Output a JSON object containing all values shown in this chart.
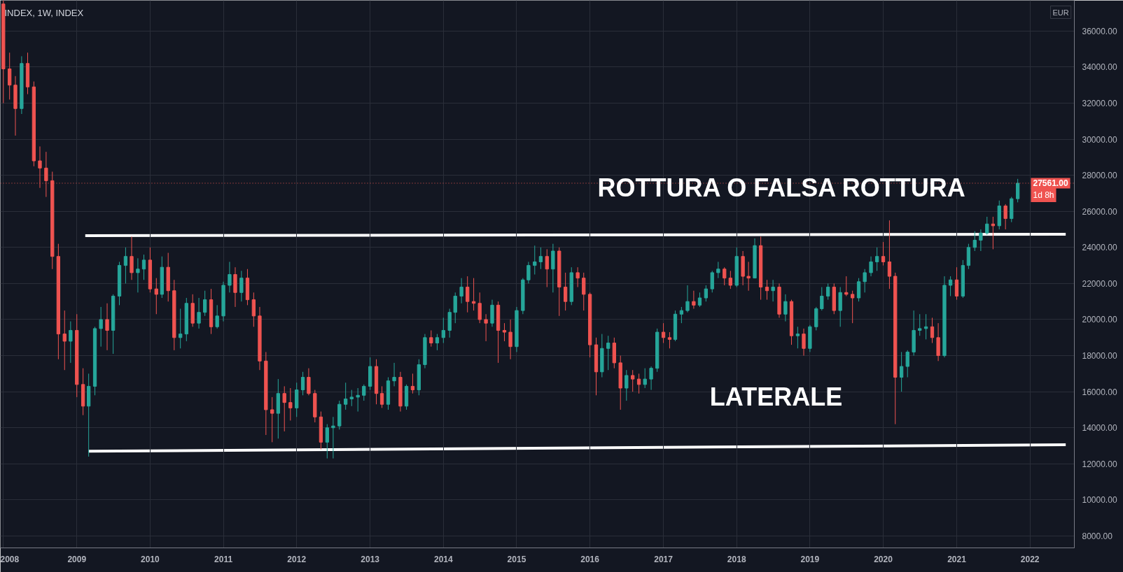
{
  "chart_data": {
    "type": "candlestick",
    "title": "INDEX, 1W, INDEX",
    "x": [
      "2008-01",
      "2008-02",
      "2008-03",
      "2008-04",
      "2008-05",
      "2008-06",
      "2008-07",
      "2008-08",
      "2008-09",
      "2008-10",
      "2008-11",
      "2008-12",
      "2009-01",
      "2009-02",
      "2009-03",
      "2009-04",
      "2009-05",
      "2009-06",
      "2009-07",
      "2009-08",
      "2009-09",
      "2009-10",
      "2009-11",
      "2009-12",
      "2010-01",
      "2010-02",
      "2010-03",
      "2010-04",
      "2010-05",
      "2010-06",
      "2010-07",
      "2010-08",
      "2010-09",
      "2010-10",
      "2010-11",
      "2010-12",
      "2011-01",
      "2011-02",
      "2011-03",
      "2011-04",
      "2011-05",
      "2011-06",
      "2011-07",
      "2011-08",
      "2011-09",
      "2011-10",
      "2011-11",
      "2011-12",
      "2012-01",
      "2012-02",
      "2012-03",
      "2012-04",
      "2012-05",
      "2012-06",
      "2012-07",
      "2012-08",
      "2012-09",
      "2012-10",
      "2012-11",
      "2012-12",
      "2013-01",
      "2013-02",
      "2013-03",
      "2013-04",
      "2013-05",
      "2013-06",
      "2013-07",
      "2013-08",
      "2013-09",
      "2013-10",
      "2013-11",
      "2013-12",
      "2014-01",
      "2014-02",
      "2014-03",
      "2014-04",
      "2014-05",
      "2014-06",
      "2014-07",
      "2014-08",
      "2014-09",
      "2014-10",
      "2014-11",
      "2014-12",
      "2015-01",
      "2015-02",
      "2015-03",
      "2015-04",
      "2015-05",
      "2015-06",
      "2015-07",
      "2015-08",
      "2015-09",
      "2015-10",
      "2015-11",
      "2015-12",
      "2016-01",
      "2016-02",
      "2016-03",
      "2016-04",
      "2016-05",
      "2016-06",
      "2016-07",
      "2016-08",
      "2016-09",
      "2016-10",
      "2016-11",
      "2016-12",
      "2017-01",
      "2017-02",
      "2017-03",
      "2017-04",
      "2017-05",
      "2017-06",
      "2017-07",
      "2017-08",
      "2017-09",
      "2017-10",
      "2017-11",
      "2017-12",
      "2018-01",
      "2018-02",
      "2018-03",
      "2018-04",
      "2018-05",
      "2018-06",
      "2018-07",
      "2018-08",
      "2018-09",
      "2018-10",
      "2018-11",
      "2018-12",
      "2019-01",
      "2019-02",
      "2019-03",
      "2019-04",
      "2019-05",
      "2019-06",
      "2019-07",
      "2019-08",
      "2019-09",
      "2019-10",
      "2019-11",
      "2019-12",
      "2020-01",
      "2020-02",
      "2020-03",
      "2020-04",
      "2020-05",
      "2020-06",
      "2020-07",
      "2020-08",
      "2020-09",
      "2020-10",
      "2020-11",
      "2020-12",
      "2021-01",
      "2021-02",
      "2021-03",
      "2021-04",
      "2021-05",
      "2021-06",
      "2021-07",
      "2021-08",
      "2021-09",
      "2021-10",
      "2021-11"
    ],
    "ohlc": [
      [
        37500,
        37700,
        32000,
        33900
      ],
      [
        33900,
        34800,
        32200,
        33000
      ],
      [
        33000,
        33500,
        30200,
        31700
      ],
      [
        31700,
        34600,
        31400,
        34200
      ],
      [
        34200,
        34800,
        32500,
        32900
      ],
      [
        32900,
        33200,
        28500,
        28800
      ],
      [
        28800,
        29600,
        27300,
        28400
      ],
      [
        28400,
        29300,
        26800,
        27700
      ],
      [
        27700,
        28200,
        22800,
        23500
      ],
      [
        23500,
        24200,
        17800,
        19200
      ],
      [
        19200,
        20500,
        17200,
        18800
      ],
      [
        18800,
        19900,
        17600,
        19400
      ],
      [
        19400,
        20300,
        15700,
        16400
      ],
      [
        16400,
        17300,
        14700,
        15200
      ],
      [
        15200,
        17000,
        12400,
        16300
      ],
      [
        16300,
        19600,
        15800,
        19500
      ],
      [
        19500,
        20700,
        18500,
        20000
      ],
      [
        20000,
        20900,
        18300,
        19400
      ],
      [
        19400,
        21400,
        18100,
        21300
      ],
      [
        21300,
        23200,
        20800,
        23000
      ],
      [
        23000,
        24000,
        22000,
        23500
      ],
      [
        23500,
        24600,
        22200,
        22600
      ],
      [
        22600,
        23400,
        21500,
        22800
      ],
      [
        22800,
        23600,
        22200,
        23300
      ],
      [
        23300,
        24000,
        21500,
        21700
      ],
      [
        21700,
        22300,
        20300,
        21400
      ],
      [
        21400,
        23500,
        21200,
        22900
      ],
      [
        22900,
        23700,
        21000,
        21600
      ],
      [
        21600,
        22200,
        18300,
        19000
      ],
      [
        19000,
        20600,
        18400,
        19200
      ],
      [
        19200,
        21200,
        18800,
        20900
      ],
      [
        20900,
        21400,
        19600,
        19800
      ],
      [
        19800,
        21200,
        19500,
        20400
      ],
      [
        20400,
        21600,
        20200,
        21100
      ],
      [
        21100,
        21700,
        19200,
        19600
      ],
      [
        19600,
        20800,
        19500,
        20200
      ],
      [
        20200,
        22100,
        19900,
        21900
      ],
      [
        21900,
        23200,
        21500,
        22500
      ],
      [
        22500,
        22900,
        20700,
        21500
      ],
      [
        21500,
        22700,
        21000,
        22300
      ],
      [
        22300,
        22800,
        20800,
        21100
      ],
      [
        21100,
        21500,
        19600,
        20200
      ],
      [
        20200,
        20700,
        17200,
        17700
      ],
      [
        17700,
        18200,
        13600,
        15000
      ],
      [
        15000,
        15700,
        13200,
        14800
      ],
      [
        14800,
        16700,
        13400,
        15900
      ],
      [
        15900,
        16300,
        13800,
        15400
      ],
      [
        15400,
        16200,
        14400,
        15100
      ],
      [
        15100,
        16500,
        14600,
        16100
      ],
      [
        16100,
        17100,
        15800,
        16800
      ],
      [
        16800,
        17300,
        15800,
        15900
      ],
      [
        15900,
        16100,
        14300,
        14600
      ],
      [
        14600,
        14900,
        12800,
        13200
      ],
      [
        13200,
        14200,
        12300,
        14000
      ],
      [
        14000,
        14600,
        12300,
        14100
      ],
      [
        14100,
        15500,
        13900,
        15300
      ],
      [
        15300,
        16500,
        15000,
        15600
      ],
      [
        15600,
        16100,
        15200,
        15700
      ],
      [
        15700,
        16200,
        14900,
        15800
      ],
      [
        15800,
        16400,
        15500,
        16300
      ],
      [
        16300,
        17900,
        16100,
        17400
      ],
      [
        17400,
        17800,
        15300,
        15900
      ],
      [
        15900,
        16300,
        15100,
        15300
      ],
      [
        15300,
        16800,
        15000,
        16600
      ],
      [
        16600,
        17600,
        16300,
        16800
      ],
      [
        16800,
        17100,
        14900,
        15200
      ],
      [
        15200,
        16400,
        15000,
        16300
      ],
      [
        16300,
        17000,
        15900,
        16100
      ],
      [
        16100,
        17800,
        15800,
        17500
      ],
      [
        17500,
        19200,
        17300,
        19000
      ],
      [
        19000,
        19400,
        18500,
        18700
      ],
      [
        18700,
        19200,
        18300,
        19000
      ],
      [
        19000,
        20100,
        18700,
        19400
      ],
      [
        19400,
        20600,
        19000,
        20400
      ],
      [
        20400,
        21500,
        19800,
        21300
      ],
      [
        21300,
        22300,
        20900,
        21800
      ],
      [
        21800,
        22400,
        20400,
        21000
      ],
      [
        21000,
        22300,
        20500,
        20900
      ],
      [
        20900,
        21500,
        19800,
        20000
      ],
      [
        20000,
        20300,
        18800,
        19800
      ],
      [
        19800,
        21100,
        19600,
        20800
      ],
      [
        20800,
        21000,
        17600,
        19400
      ],
      [
        19400,
        19800,
        18800,
        19300
      ],
      [
        19300,
        20000,
        17800,
        18500
      ],
      [
        18500,
        20700,
        18200,
        20500
      ],
      [
        20500,
        22300,
        20300,
        22200
      ],
      [
        22200,
        23200,
        22000,
        23000
      ],
      [
        23000,
        24100,
        22500,
        23200
      ],
      [
        23200,
        24000,
        22800,
        23500
      ],
      [
        23500,
        23900,
        21800,
        22800
      ],
      [
        22800,
        24200,
        21500,
        23800
      ],
      [
        23800,
        24000,
        20200,
        21800
      ],
      [
        21800,
        22600,
        20500,
        21000
      ],
      [
        21000,
        22900,
        20800,
        22600
      ],
      [
        22600,
        22900,
        21800,
        22300
      ],
      [
        22300,
        22600,
        20500,
        21400
      ],
      [
        21400,
        21500,
        17900,
        18600
      ],
      [
        18600,
        19000,
        15800,
        17100
      ],
      [
        17100,
        19200,
        16800,
        18400
      ],
      [
        18400,
        19100,
        17200,
        18700
      ],
      [
        18700,
        19000,
        17300,
        17600
      ],
      [
        17600,
        18000,
        15000,
        16200
      ],
      [
        16200,
        17200,
        15500,
        16900
      ],
      [
        16900,
        17200,
        16000,
        16700
      ],
      [
        16700,
        17000,
        15900,
        16400
      ],
      [
        16400,
        17300,
        16200,
        16700
      ],
      [
        16700,
        17400,
        16100,
        17300
      ],
      [
        17300,
        19500,
        17100,
        19300
      ],
      [
        19300,
        19800,
        18700,
        19000
      ],
      [
        19000,
        19300,
        18400,
        18900
      ],
      [
        18900,
        20500,
        18800,
        20300
      ],
      [
        20300,
        20700,
        19800,
        20500
      ],
      [
        20500,
        21900,
        20400,
        21000
      ],
      [
        21000,
        21600,
        20600,
        20800
      ],
      [
        20800,
        21500,
        20700,
        21200
      ],
      [
        21200,
        21900,
        21000,
        21700
      ],
      [
        21700,
        22700,
        21500,
        22600
      ],
      [
        22600,
        23200,
        22300,
        22800
      ],
      [
        22800,
        22900,
        21900,
        22300
      ],
      [
        22300,
        22700,
        21700,
        21900
      ],
      [
        21900,
        24000,
        21800,
        23500
      ],
      [
        23500,
        23800,
        21900,
        22400
      ],
      [
        22400,
        23200,
        21600,
        22300
      ],
      [
        22300,
        24500,
        22300,
        24100
      ],
      [
        24100,
        24600,
        21100,
        21800
      ],
      [
        21800,
        22200,
        21100,
        21600
      ],
      [
        21600,
        22200,
        21000,
        21800
      ],
      [
        21800,
        22000,
        20100,
        20300
      ],
      [
        20300,
        21400,
        19900,
        21000
      ],
      [
        21000,
        21100,
        18600,
        19100
      ],
      [
        19100,
        19600,
        18400,
        19200
      ],
      [
        19200,
        19500,
        18000,
        18400
      ],
      [
        18400,
        19700,
        18200,
        19600
      ],
      [
        19600,
        20700,
        19400,
        20600
      ],
      [
        20600,
        21800,
        20500,
        21300
      ],
      [
        21300,
        22000,
        21100,
        21800
      ],
      [
        21800,
        22000,
        20300,
        20500
      ],
      [
        20500,
        21800,
        19600,
        21500
      ],
      [
        21500,
        22400,
        21300,
        21400
      ],
      [
        21400,
        21600,
        19800,
        21200
      ],
      [
        21200,
        22300,
        21000,
        22100
      ],
      [
        22100,
        22800,
        21500,
        22600
      ],
      [
        22600,
        23500,
        22400,
        23200
      ],
      [
        23200,
        24000,
        22700,
        23500
      ],
      [
        23500,
        24300,
        23000,
        23200
      ],
      [
        23200,
        25500,
        21700,
        22400
      ],
      [
        22400,
        22600,
        14200,
        16800
      ],
      [
        16800,
        18200,
        16000,
        17400
      ],
      [
        17400,
        18300,
        16800,
        18200
      ],
      [
        18200,
        20500,
        18000,
        19400
      ],
      [
        19400,
        20300,
        19100,
        19500
      ],
      [
        19500,
        20300,
        18900,
        19600
      ],
      [
        19600,
        20100,
        18700,
        19000
      ],
      [
        19000,
        19800,
        17700,
        18000
      ],
      [
        18000,
        22400,
        17900,
        21900
      ],
      [
        21900,
        22400,
        21300,
        22200
      ],
      [
        22200,
        22900,
        21100,
        21300
      ],
      [
        21300,
        23300,
        21200,
        23000
      ],
      [
        23000,
        24200,
        22800,
        24000
      ],
      [
        24000,
        24900,
        23800,
        24400
      ],
      [
        24400,
        25000,
        23800,
        24800
      ],
      [
        24800,
        25700,
        24700,
        25300
      ],
      [
        25300,
        25700,
        23900,
        25200
      ],
      [
        25200,
        26600,
        25000,
        26300
      ],
      [
        26300,
        26400,
        25000,
        25600
      ],
      [
        25600,
        26800,
        25400,
        26700
      ],
      [
        26700,
        27800,
        26500,
        27561
      ]
    ],
    "colors": [
      "#ef5350",
      "#ef5350",
      "#ef5350",
      "#26a69a",
      "#ef5350",
      "#ef5350",
      "#ef5350",
      "#ef5350",
      "#ef5350",
      "#ef5350",
      "#ef5350",
      "#26a69a",
      "#ef5350",
      "#ef5350",
      "#26a69a",
      "#26a69a",
      "#26a69a",
      "#ef5350",
      "#26a69a",
      "#26a69a",
      "#26a69a",
      "#ef5350",
      "#26a69a",
      "#26a69a",
      "#ef5350",
      "#ef5350",
      "#26a69a",
      "#ef5350",
      "#ef5350",
      "#26a69a",
      "#26a69a",
      "#ef5350",
      "#26a69a",
      "#26a69a",
      "#ef5350",
      "#26a69a",
      "#26a69a",
      "#26a69a",
      "#ef5350",
      "#26a69a",
      "#ef5350",
      "#ef5350",
      "#ef5350",
      "#ef5350",
      "#ef5350",
      "#26a69a",
      "#ef5350",
      "#ef5350",
      "#26a69a",
      "#26a69a",
      "#ef5350",
      "#ef5350",
      "#ef5350",
      "#26a69a",
      "#26a69a",
      "#26a69a",
      "#26a69a",
      "#26a69a",
      "#26a69a",
      "#26a69a",
      "#26a69a",
      "#ef5350",
      "#ef5350",
      "#26a69a",
      "#26a69a",
      "#ef5350",
      "#26a69a",
      "#ef5350",
      "#26a69a",
      "#26a69a",
      "#ef5350",
      "#26a69a",
      "#26a69a",
      "#26a69a",
      "#26a69a",
      "#26a69a",
      "#ef5350",
      "#ef5350",
      "#ef5350",
      "#ef5350",
      "#26a69a",
      "#ef5350",
      "#ef5350",
      "#ef5350",
      "#26a69a",
      "#26a69a",
      "#26a69a",
      "#26a69a",
      "#26a69a",
      "#ef5350",
      "#26a69a",
      "#ef5350",
      "#ef5350",
      "#26a69a",
      "#ef5350",
      "#ef5350",
      "#ef5350",
      "#ef5350",
      "#26a69a",
      "#26a69a",
      "#ef5350",
      "#ef5350",
      "#26a69a",
      "#ef5350",
      "#ef5350",
      "#26a69a",
      "#26a69a",
      "#26a69a",
      "#ef5350",
      "#ef5350",
      "#26a69a",
      "#26a69a",
      "#26a69a",
      "#ef5350",
      "#26a69a",
      "#26a69a",
      "#26a69a",
      "#26a69a",
      "#ef5350",
      "#ef5350",
      "#26a69a",
      "#ef5350",
      "#ef5350",
      "#26a69a",
      "#ef5350",
      "#ef5350",
      "#26a69a",
      "#ef5350",
      "#26a69a",
      "#ef5350",
      "#26a69a",
      "#ef5350",
      "#26a69a",
      "#26a69a",
      "#26a69a",
      "#26a69a",
      "#ef5350",
      "#26a69a",
      "#ef5350",
      "#ef5350",
      "#26a69a",
      "#26a69a",
      "#26a69a",
      "#26a69a",
      "#ef5350",
      "#ef5350",
      "#ef5350",
      "#26a69a",
      "#26a69a",
      "#26a69a",
      "#26a69a",
      "#26a69a",
      "#ef5350",
      "#ef5350",
      "#26a69a",
      "#26a69a",
      "#ef5350",
      "#26a69a",
      "#26a69a",
      "#26a69a",
      "#26a69a",
      "#26a69a",
      "#ef5350",
      "#26a69a",
      "#ef5350",
      "#26a69a",
      "#26a69a"
    ],
    "series": [
      {
        "type": "line",
        "color": "#ffffff",
        "x": [
          "2009-02-12",
          "2022-06-28"
        ],
        "values": [
          24650,
          24730
        ]
      },
      {
        "type": "line",
        "color": "#ffffff",
        "x": [
          "2009-03-01",
          "2022-06-28"
        ],
        "values": [
          12700,
          13060
        ]
      }
    ],
    "ref_lines": [
      {
        "axis": "y",
        "value": 27561,
        "label": "27561.00",
        "color": "#ef5350",
        "line_style": "dotted"
      }
    ],
    "annotations": [
      "ROTTURA O FALSA ROTTURA",
      "LATERALE",
      "1d 8h",
      "EUR"
    ],
    "xlim": [
      "2007-12-17",
      "2022-08-10"
    ],
    "xticks": [
      "2008",
      "2009",
      "2010",
      "2011",
      "2012",
      "2013",
      "2014",
      "2015",
      "2016",
      "2017",
      "2018",
      "2019",
      "2020",
      "2021",
      "2022"
    ],
    "ylim": [
      7340,
      37700
    ],
    "yticks": [
      {
        "value": 8000,
        "label": "8000.00"
      },
      {
        "value": 10000,
        "label": "10000.00"
      },
      {
        "value": 12000,
        "label": "12000.00"
      },
      {
        "value": 14000,
        "label": "14000.00"
      },
      {
        "value": 16000,
        "label": "16000.00"
      },
      {
        "value": 18000,
        "label": "18000.00"
      },
      {
        "value": 20000,
        "label": "20000.00"
      },
      {
        "value": 22000,
        "label": "22000.00"
      },
      {
        "value": 24000,
        "label": "24000.00"
      },
      {
        "value": 26000,
        "label": "26000.00"
      },
      {
        "value": 28000,
        "label": "28000.00"
      },
      {
        "value": 30000,
        "label": "30000.00"
      },
      {
        "value": 32000,
        "label": "32000.00"
      },
      {
        "value": 34000,
        "label": "34000.00"
      },
      {
        "value": 36000,
        "label": "36000.00"
      }
    ],
    "grid": true
  }
}
